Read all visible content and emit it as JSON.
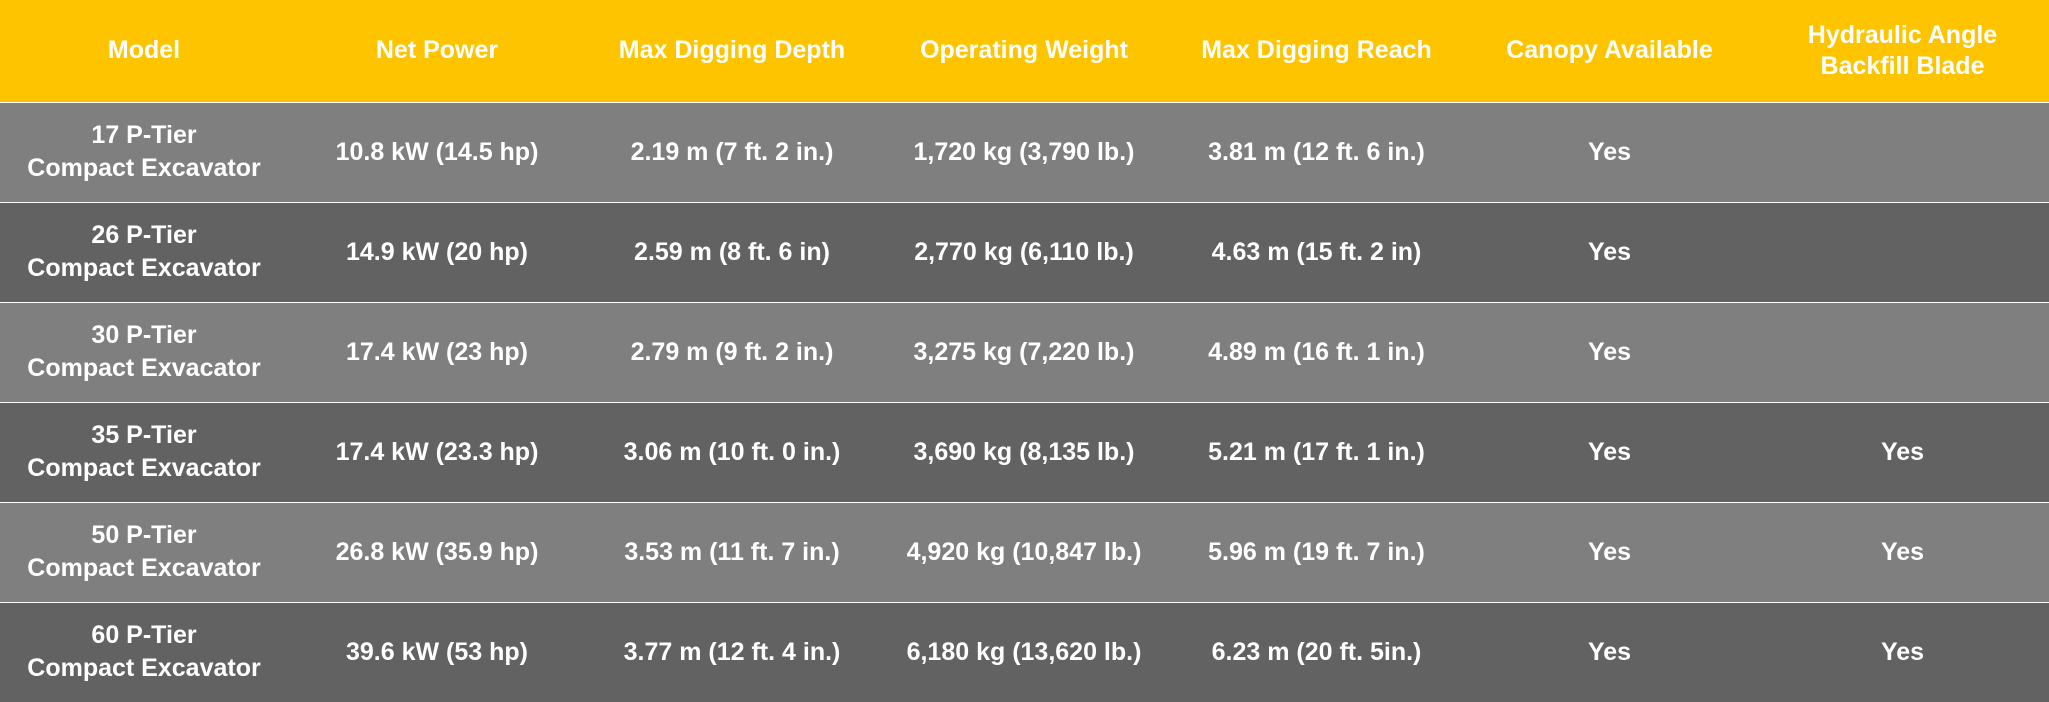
{
  "colors": {
    "header_bg": "#ffc400",
    "row_light": "#7f7f7f",
    "row_dark": "#626262",
    "text": "#ffffff"
  },
  "table": {
    "headers": [
      "Model",
      "Net Power",
      "Max Digging Depth",
      "Operating Weight",
      "Max Digging Reach",
      "Canopy Available",
      "Hydraulic Angle Backfill Blade"
    ],
    "header_last_line1": "Hydraulic Angle",
    "header_last_line2": "Backfill Blade",
    "rows": [
      {
        "model_line1": "17 P-Tier",
        "model_line2": "Compact Excavator",
        "net_power": "10.8 kW (14.5 hp)",
        "max_digging_depth": "2.19 m (7 ft. 2 in.)",
        "operating_weight": "1,720 kg (3,790 lb.)",
        "max_digging_reach": "3.81 m (12 ft. 6 in.)",
        "canopy_available": "Yes",
        "hydraulic_angle_backfill_blade": ""
      },
      {
        "model_line1": "26 P-Tier",
        "model_line2": "Compact Excavator",
        "net_power": "14.9 kW (20 hp)",
        "max_digging_depth": "2.59 m (8 ft. 6 in)",
        "operating_weight": "2,770 kg (6,110 lb.)",
        "max_digging_reach": "4.63 m (15 ft. 2 in)",
        "canopy_available": "Yes",
        "hydraulic_angle_backfill_blade": ""
      },
      {
        "model_line1": "30 P-Tier",
        "model_line2": "Compact Exvacator",
        "net_power": "17.4 kW (23 hp)",
        "max_digging_depth": "2.79 m (9 ft. 2 in.)",
        "operating_weight": "3,275 kg (7,220 lb.)",
        "max_digging_reach": "4.89 m (16 ft. 1 in.)",
        "canopy_available": "Yes",
        "hydraulic_angle_backfill_blade": ""
      },
      {
        "model_line1": "35 P-Tier",
        "model_line2": "Compact Exvacator",
        "net_power": "17.4 kW (23.3 hp)",
        "max_digging_depth": "3.06 m (10 ft. 0 in.)",
        "operating_weight": "3,690 kg (8,135 lb.)",
        "max_digging_reach": "5.21 m (17 ft. 1 in.)",
        "canopy_available": "Yes",
        "hydraulic_angle_backfill_blade": "Yes"
      },
      {
        "model_line1": "50 P-Tier",
        "model_line2": "Compact Excavator",
        "net_power": "26.8 kW (35.9 hp)",
        "max_digging_depth": "3.53 m (11 ft. 7 in.)",
        "operating_weight": "4,920 kg (10,847 lb.)",
        "max_digging_reach": "5.96 m (19 ft. 7 in.)",
        "canopy_available": "Yes",
        "hydraulic_angle_backfill_blade": "Yes"
      },
      {
        "model_line1": "60 P-Tier",
        "model_line2": "Compact Excavator",
        "net_power": "39.6 kW (53 hp)",
        "max_digging_depth": "3.77 m (12 ft. 4 in.)",
        "operating_weight": "6,180 kg (13,620 lb.)",
        "max_digging_reach": "6.23 m (20 ft. 5in.)",
        "canopy_available": "Yes",
        "hydraulic_angle_backfill_blade": "Yes"
      }
    ]
  }
}
